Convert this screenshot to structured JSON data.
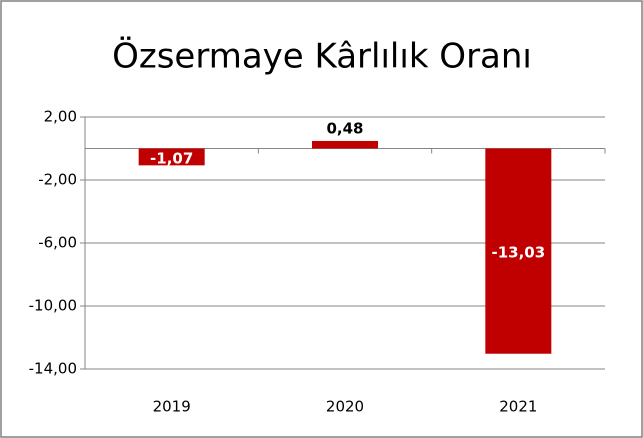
{
  "chart_data": {
    "type": "bar",
    "title": "Özsermaye Kârlılık Oranı",
    "categories": [
      "2019",
      "2020",
      "2021"
    ],
    "values": [
      -1.07,
      0.48,
      -13.03
    ],
    "value_labels": [
      "-1,07",
      "0,48",
      "-13,03"
    ],
    "color": "#c00000",
    "ylim": [
      -14,
      2
    ],
    "yticks": [
      {
        "value": 2,
        "label": "2,00"
      },
      {
        "value": -2,
        "label": "-2,00"
      },
      {
        "value": -6,
        "label": "-6,00"
      },
      {
        "value": -10,
        "label": "-10,00"
      },
      {
        "value": -14,
        "label": "-14,00"
      }
    ],
    "grid": true
  }
}
